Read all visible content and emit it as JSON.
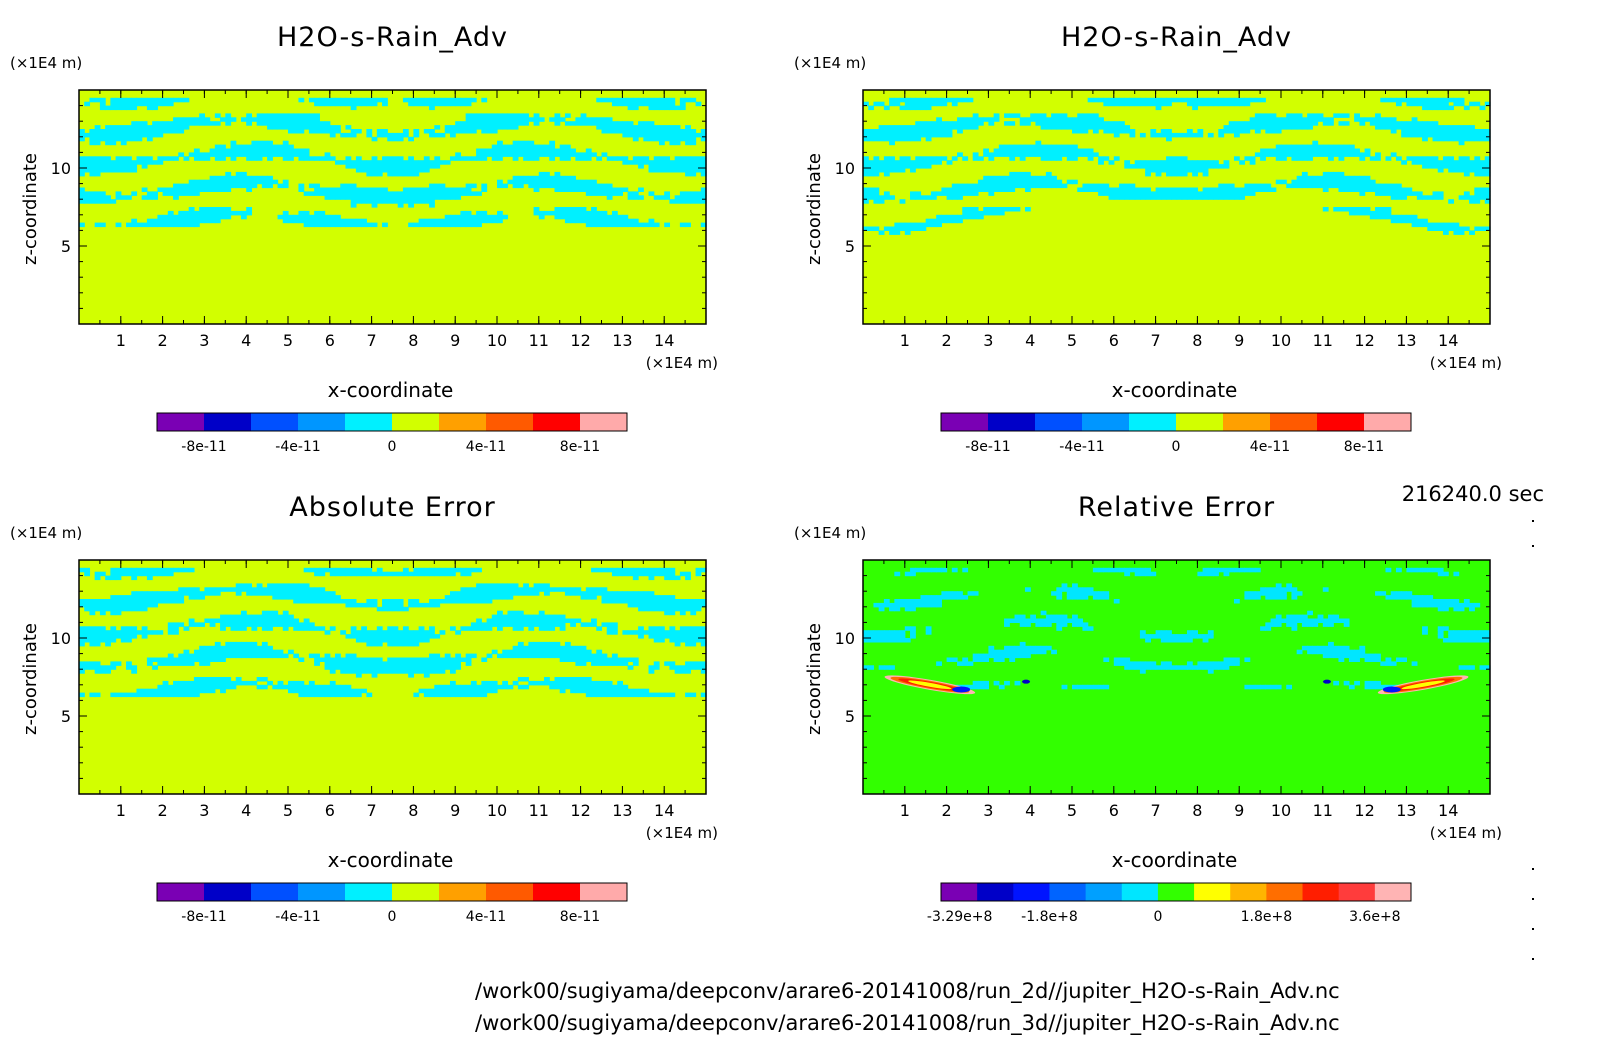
{
  "chart_data": [
    {
      "type": "heatmap",
      "title": "H2O-s-Rain_Adv",
      "xlabel": "x-coordinate",
      "ylabel": "z-coordinate",
      "xunit": "(×1E4 m)",
      "yunit": "(×1E4 m)",
      "xlim": [
        0,
        15
      ],
      "ylim": [
        0,
        15
      ],
      "xticks": [
        "1",
        "2",
        "3",
        "4",
        "5",
        "6",
        "7",
        "8",
        "9",
        "10",
        "11",
        "12",
        "13",
        "14"
      ],
      "yticks": [
        "5",
        "10"
      ],
      "colorbar": {
        "colors": [
          "#7a00b4",
          "#0000c8",
          "#0050ff",
          "#0096ff",
          "#00f0ff",
          "#d2ff00",
          "#ffa000",
          "#ff5a00",
          "#ff0000",
          "#ffaaaa"
        ],
        "ticks": [
          "-8e-11",
          "-4e-11",
          "0",
          "4e-11",
          "8e-11"
        ],
        "range": [
          -1e-10,
          1e-10
        ]
      },
      "background_value": "0 (yellow-green)",
      "feature": "cyan/yellow-green banded structure between z=6 and z=15, uniform yellow-green below z≈6"
    },
    {
      "type": "heatmap",
      "title": "H2O-s-Rain_Adv",
      "xlabel": "x-coordinate",
      "ylabel": "z-coordinate",
      "xunit": "(×1E4 m)",
      "yunit": "(×1E4 m)",
      "xlim": [
        0,
        15
      ],
      "ylim": [
        0,
        15
      ],
      "xticks": [
        "1",
        "2",
        "3",
        "4",
        "5",
        "6",
        "7",
        "8",
        "9",
        "10",
        "11",
        "12",
        "13",
        "14"
      ],
      "yticks": [
        "5",
        "10"
      ],
      "colorbar": {
        "colors": [
          "#7a00b4",
          "#0000c8",
          "#0050ff",
          "#0096ff",
          "#00f0ff",
          "#d2ff00",
          "#ffa000",
          "#ff5a00",
          "#ff0000",
          "#ffaaaa"
        ],
        "ticks": [
          "-8e-11",
          "-4e-11",
          "0",
          "4e-11",
          "8e-11"
        ],
        "range": [
          -1e-10,
          1e-10
        ]
      },
      "feature": "banded structure with dome-shaped lower boundary peaking near x=7.5, z≈8"
    },
    {
      "type": "heatmap",
      "title": "Absolute Error",
      "xlabel": "x-coordinate",
      "ylabel": "z-coordinate",
      "xunit": "(×1E4 m)",
      "yunit": "(×1E4 m)",
      "xlim": [
        0,
        15
      ],
      "ylim": [
        0,
        15
      ],
      "xticks": [
        "1",
        "2",
        "3",
        "4",
        "5",
        "6",
        "7",
        "8",
        "9",
        "10",
        "11",
        "12",
        "13",
        "14"
      ],
      "yticks": [
        "5",
        "10"
      ],
      "colorbar": {
        "colors": [
          "#7a00b4",
          "#0000c8",
          "#0050ff",
          "#0096ff",
          "#00f0ff",
          "#d2ff00",
          "#ffa000",
          "#ff5a00",
          "#ff0000",
          "#ffaaaa"
        ],
        "ticks": [
          "-8e-11",
          "-4e-11",
          "0",
          "4e-11",
          "8e-11"
        ],
        "range": [
          -1e-10,
          1e-10
        ]
      }
    },
    {
      "type": "heatmap",
      "title": "Relative Error",
      "xlabel": "x-coordinate",
      "ylabel": "z-coordinate",
      "xunit": "(×1E4 m)",
      "yunit": "(×1E4 m)",
      "xlim": [
        0,
        15
      ],
      "ylim": [
        0,
        15
      ],
      "xticks": [
        "1",
        "2",
        "3",
        "4",
        "5",
        "6",
        "7",
        "8",
        "9",
        "10",
        "11",
        "12",
        "13",
        "14"
      ],
      "yticks": [
        "5",
        "10"
      ],
      "colorbar": {
        "colors": [
          "#7a00b4",
          "#0000c8",
          "#0014ff",
          "#0064ff",
          "#00a0ff",
          "#00e6ff",
          "#32ff00",
          "#ffff00",
          "#ffb400",
          "#ff6e00",
          "#ff1e00",
          "#ff3c3c",
          "#ffb4b4"
        ],
        "ticks": [
          "-3.29e+8",
          "-1.8e+8",
          "0",
          "1.8e+8",
          "3.6e+8"
        ],
        "range": [
          -360000000.0,
          420000000.0
        ]
      },
      "feature": "mostly green (≈0) with light-blue bands; red/orange error lobes near x≈1.5 and x≈13.8 at z≈7"
    }
  ],
  "time_label": "216240.0 sec",
  "file_paths": [
    "/work00/sugiyama/deepconv/arare6-20141008/run_2d//jupiter_H2O-s-Rain_Adv.nc",
    "/work00/sugiyama/deepconv/arare6-20141008/run_3d//jupiter_H2O-s-Rain_Adv.nc"
  ]
}
